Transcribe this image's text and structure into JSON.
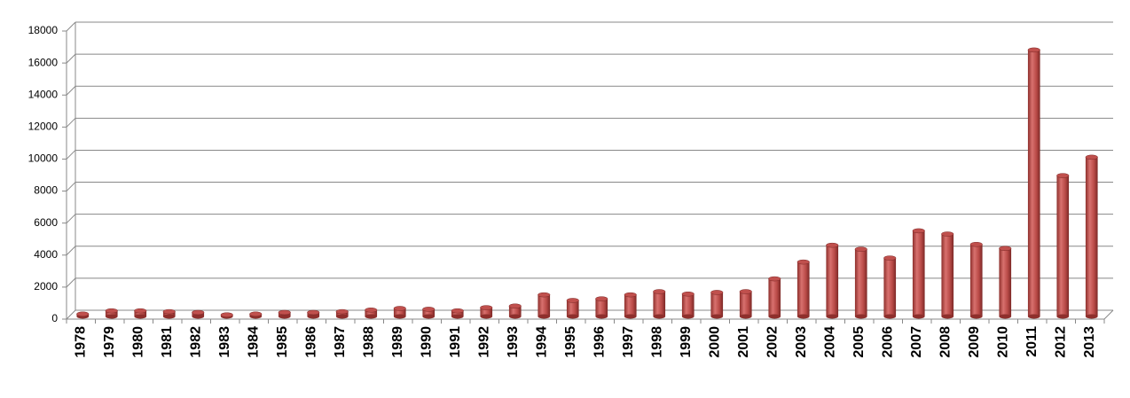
{
  "chart_data": {
    "type": "bar",
    "categories": [
      "1978",
      "1979",
      "1980",
      "1981",
      "1982",
      "1983",
      "1984",
      "1985",
      "1986",
      "1987",
      "1988",
      "1989",
      "1990",
      "1991",
      "1992",
      "1993",
      "1994",
      "1995",
      "1996",
      "1997",
      "1998",
      "1999",
      "2000",
      "2001",
      "2002",
      "2003",
      "2004",
      "2005",
      "2006",
      "2007",
      "2008",
      "2009",
      "2010",
      "2011",
      "2012",
      "2013"
    ],
    "values": [
      150,
      350,
      350,
      300,
      250,
      100,
      150,
      250,
      250,
      300,
      400,
      500,
      450,
      350,
      550,
      650,
      1350,
      1000,
      1100,
      1350,
      1550,
      1400,
      1500,
      1550,
      2350,
      3400,
      4450,
      4200,
      3650,
      5350,
      5150,
      4500,
      4250,
      16650,
      8800,
      9950
    ],
    "color": "#c0504d",
    "ylim": [
      0,
      18000
    ],
    "yticks": [
      0,
      2000,
      4000,
      6000,
      8000,
      10000,
      12000,
      14000,
      16000,
      18000
    ],
    "grid": true
  }
}
